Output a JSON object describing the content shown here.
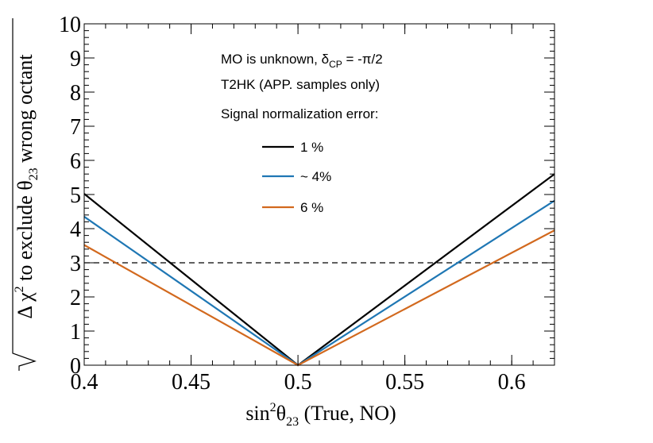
{
  "chart_data": {
    "type": "line",
    "xlabel_parts": {
      "pre": "sin",
      "sup": "2",
      "theta": "θ",
      "sub": "23",
      "post": " (True, NO)"
    },
    "ylabel_parts": {
      "pre": "Δ χ",
      "sup": "2",
      "mid": " to exclude θ",
      "sub": "23",
      "post": " wrong octant"
    },
    "xlim": [
      0.4,
      0.62
    ],
    "ylim": [
      0,
      10
    ],
    "x_major_ticks": [
      0.4,
      0.45,
      0.5,
      0.55,
      0.6
    ],
    "x_tick_labels": [
      "0.4",
      "0.45",
      "0.5",
      "0.55",
      "0.6"
    ],
    "y_major_ticks": [
      0,
      1,
      2,
      3,
      4,
      5,
      6,
      7,
      8,
      9,
      10
    ],
    "y_tick_labels": [
      "0",
      "1",
      "2",
      "3",
      "4",
      "5",
      "6",
      "7",
      "8",
      "9",
      "10"
    ],
    "threshold": {
      "y": 3,
      "style": "dashed",
      "color": "#000000"
    },
    "annotations": {
      "line1_pre": "MO is unknown, δ",
      "line1_sub": "CP",
      "line1_post": " = -π/2",
      "line2": "T2HK (APP. samples only)",
      "line3": "Signal normalization error:"
    },
    "series": [
      {
        "name": "1 %",
        "color": "#000000",
        "x": [
          0.4,
          0.5,
          0.62
        ],
        "y": [
          5.02,
          0.0,
          5.6
        ]
      },
      {
        "name": "~ 4%",
        "color": "#1f77b4",
        "x": [
          0.4,
          0.5,
          0.62
        ],
        "y": [
          4.35,
          0.0,
          4.82
        ]
      },
      {
        "name": " 6 %",
        "color": "#d2691e",
        "x": [
          0.4,
          0.5,
          0.62
        ],
        "y": [
          3.52,
          0.0,
          3.95
        ]
      }
    ]
  }
}
